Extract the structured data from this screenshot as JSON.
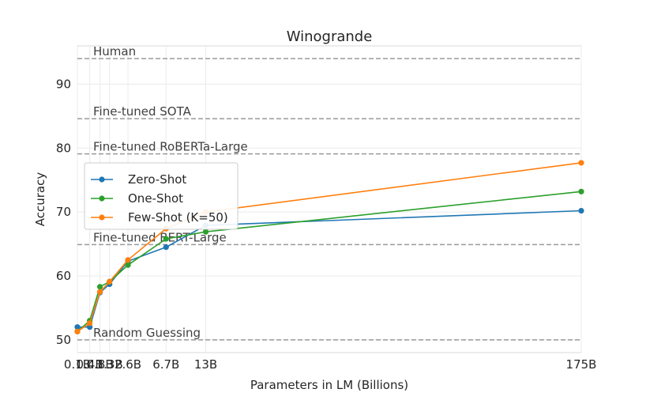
{
  "chart_data": {
    "type": "line",
    "title": "Winogrande",
    "xlabel": "Parameters in LM (Billions)",
    "ylabel": "Accuracy",
    "categories": [
      "0.1B",
      "0.4B",
      "0.8B",
      "1.3B",
      "2.6B",
      "6.7B",
      "13B",
      "175B"
    ],
    "x": [
      0.1,
      0.4,
      0.8,
      1.3,
      2.6,
      6.7,
      13,
      175
    ],
    "x_scale": "sqrt",
    "ylim": [
      48,
      96
    ],
    "yticks": [
      50,
      60,
      70,
      80,
      90
    ],
    "grid": true,
    "legend_position": "upper-left",
    "series": [
      {
        "name": "Zero-Shot",
        "color": "#1f77b4",
        "values": [
          52.0,
          52.0,
          57.4,
          58.7,
          62.3,
          64.5,
          67.9,
          70.2
        ]
      },
      {
        "name": "One-Shot",
        "color": "#2ca02c",
        "values": [
          51.3,
          53.0,
          58.3,
          59.1,
          61.7,
          65.8,
          66.9,
          73.2
        ]
      },
      {
        "name": "Few-Shot (K=50)",
        "color": "#ff7f0e",
        "values": [
          51.3,
          52.6,
          57.5,
          59.1,
          62.5,
          67.4,
          70.0,
          77.7
        ]
      }
    ],
    "reference_lines": [
      {
        "label": "Human",
        "value": 94.0
      },
      {
        "label": "Fine-tuned SOTA",
        "value": 84.6
      },
      {
        "label": "Fine-tuned RoBERTa-Large",
        "value": 79.1
      },
      {
        "label": "Fine-tuned BERT-Large",
        "value": 64.9
      },
      {
        "label": "Random Guessing",
        "value": 50.0
      }
    ]
  }
}
